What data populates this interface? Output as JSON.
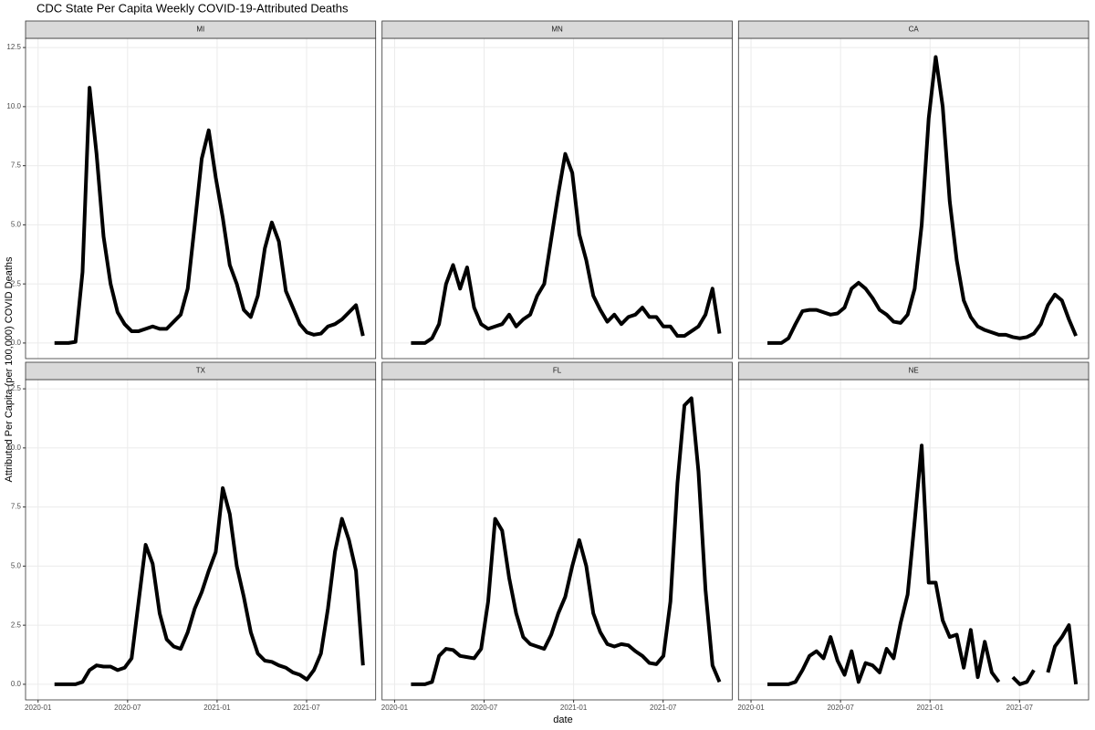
{
  "title": "CDC State Per Capita Weekly COVID-19-Attributed Deaths",
  "x_label": "date",
  "y_label": "Attributed Per Capita (per 100,000) COVID Deaths",
  "chart_data": [
    {
      "type": "line",
      "title": "MI",
      "color": "#000000",
      "grid": true,
      "y_axis_labels": true,
      "x_axis_labels": false,
      "x": [
        1.1,
        1.57,
        2.04,
        2.51,
        2.98,
        3.45,
        3.92,
        4.39,
        4.86,
        5.33,
        5.8,
        6.27,
        6.74,
        7.21,
        7.68,
        8.15,
        8.62,
        9.09,
        9.56,
        10.03,
        10.5,
        10.97,
        11.44,
        11.91,
        12.38,
        12.85,
        13.32,
        13.79,
        14.26,
        14.73,
        15.2,
        15.67,
        16.14,
        16.61,
        17.08,
        17.55,
        18.02,
        18.49,
        18.96,
        19.43,
        19.9,
        20.37,
        20.84,
        21.31,
        21.78
      ],
      "values": [
        0,
        0,
        0,
        0.05,
        3,
        10.8,
        8,
        4.5,
        2.5,
        1.3,
        0.8,
        0.5,
        0.5,
        0.6,
        0.7,
        0.6,
        0.6,
        0.9,
        1.2,
        2.3,
        5,
        7.8,
        9,
        7,
        5.3,
        3.3,
        2.5,
        1.4,
        1.1,
        2,
        4,
        5.1,
        4.3,
        2.2,
        1.5,
        0.8,
        0.45,
        0.35,
        0.4,
        0.7,
        0.8,
        1,
        1.3,
        1.6,
        0.3
      ],
      "xlim": [
        -0.84,
        22.63
      ],
      "xticks": [
        0,
        6,
        12,
        18
      ],
      "ylim": [
        -0.66,
        12.89
      ],
      "yticks": [
        {
          "value": 0,
          "label": "0.0"
        },
        2.5,
        {
          "value": 5,
          "label": "5.0"
        },
        7.5,
        {
          "value": 10,
          "label": "10.0"
        },
        12.5
      ]
    },
    {
      "type": "line",
      "title": "MN",
      "color": "#000000",
      "grid": true,
      "y_axis_labels": false,
      "x_axis_labels": false,
      "x": [
        1.1,
        1.57,
        2.04,
        2.51,
        2.98,
        3.45,
        3.92,
        4.39,
        4.86,
        5.33,
        5.8,
        6.27,
        6.74,
        7.21,
        7.68,
        8.15,
        8.62,
        9.09,
        9.56,
        10.03,
        10.5,
        10.97,
        11.44,
        11.91,
        12.38,
        12.85,
        13.32,
        13.79,
        14.26,
        14.73,
        15.2,
        15.67,
        16.14,
        16.61,
        17.08,
        17.55,
        18.02,
        18.49,
        18.96,
        19.43,
        19.9,
        20.37,
        20.84,
        21.31,
        21.78
      ],
      "values": [
        0,
        0,
        0,
        0.2,
        0.8,
        2.5,
        3.3,
        2.3,
        3.2,
        1.5,
        0.8,
        0.6,
        0.7,
        0.8,
        1.2,
        0.7,
        1,
        1.2,
        2,
        2.5,
        4.4,
        6.3,
        8,
        7.2,
        4.6,
        3.5,
        2,
        1.4,
        0.9,
        1.2,
        0.8,
        1.1,
        1.2,
        1.5,
        1.1,
        1.1,
        0.7,
        0.7,
        0.3,
        0.3,
        0.5,
        0.7,
        1.2,
        2.3,
        0.4
      ],
      "xlim": [
        -0.84,
        22.63
      ],
      "xticks": [
        0,
        6,
        12,
        18
      ],
      "ylim": [
        -0.66,
        12.89
      ],
      "yticks": [
        0,
        2.5,
        5,
        7.5,
        10,
        12.5
      ]
    },
    {
      "type": "line",
      "title": "CA",
      "color": "#000000",
      "grid": true,
      "y_axis_labels": false,
      "x_axis_labels": false,
      "x": [
        1.1,
        1.57,
        2.04,
        2.51,
        2.98,
        3.45,
        3.92,
        4.39,
        4.86,
        5.33,
        5.8,
        6.27,
        6.74,
        7.21,
        7.68,
        8.15,
        8.62,
        9.09,
        9.56,
        10.03,
        10.5,
        10.97,
        11.44,
        11.91,
        12.38,
        12.85,
        13.32,
        13.79,
        14.26,
        14.73,
        15.2,
        15.67,
        16.14,
        16.61,
        17.08,
        17.55,
        18.02,
        18.49,
        18.96,
        19.43,
        19.9,
        20.37,
        20.84,
        21.31,
        21.78
      ],
      "values": [
        0,
        0,
        0,
        0.2,
        0.8,
        1.35,
        1.4,
        1.4,
        1.3,
        1.2,
        1.25,
        1.5,
        2.3,
        2.55,
        2.3,
        1.9,
        1.4,
        1.2,
        0.9,
        0.85,
        1.2,
        2.3,
        5,
        9.5,
        12.1,
        10,
        6,
        3.5,
        1.8,
        1.1,
        0.7,
        0.55,
        0.45,
        0.35,
        0.35,
        0.25,
        0.2,
        0.25,
        0.4,
        0.8,
        1.6,
        2.05,
        1.8,
        1,
        0.3
      ],
      "xlim": [
        -0.84,
        22.63
      ],
      "xticks": [
        0,
        6,
        12,
        18
      ],
      "ylim": [
        -0.66,
        12.89
      ],
      "yticks": [
        0,
        2.5,
        5,
        7.5,
        10,
        12.5
      ]
    },
    {
      "type": "line",
      "title": "TX",
      "color": "#000000",
      "grid": true,
      "y_axis_labels": true,
      "x_axis_labels": true,
      "x": [
        1.1,
        1.57,
        2.04,
        2.51,
        2.98,
        3.45,
        3.92,
        4.39,
        4.86,
        5.33,
        5.8,
        6.27,
        6.74,
        7.21,
        7.68,
        8.15,
        8.62,
        9.09,
        9.56,
        10.03,
        10.5,
        10.97,
        11.44,
        11.91,
        12.38,
        12.85,
        13.32,
        13.79,
        14.26,
        14.73,
        15.2,
        15.67,
        16.14,
        16.61,
        17.08,
        17.55,
        18.02,
        18.49,
        18.96,
        19.43,
        19.9,
        20.37,
        20.84,
        21.31,
        21.78
      ],
      "values": [
        0,
        0,
        0,
        0,
        0.1,
        0.6,
        0.8,
        0.75,
        0.75,
        0.6,
        0.7,
        1.1,
        3.5,
        5.9,
        5.1,
        3,
        1.9,
        1.6,
        1.5,
        2.2,
        3.2,
        3.9,
        4.8,
        5.6,
        8.3,
        7.2,
        5,
        3.7,
        2.2,
        1.3,
        1,
        0.95,
        0.8,
        0.7,
        0.5,
        0.4,
        0.2,
        0.6,
        1.3,
        3.2,
        5.6,
        7,
        6.1,
        4.8,
        0.8
      ],
      "xlim": [
        -0.84,
        22.63
      ],
      "xticks": [
        {
          "value": 0,
          "label": "2020-01"
        },
        {
          "value": 6,
          "label": "2020-07"
        },
        {
          "value": 12,
          "label": "2021-01"
        },
        {
          "value": 18,
          "label": "2021-07"
        }
      ],
      "ylim": [
        -0.66,
        12.89
      ],
      "yticks": [
        {
          "value": 0,
          "label": "0.0"
        },
        2.5,
        {
          "value": 5,
          "label": "5.0"
        },
        7.5,
        {
          "value": 10,
          "label": "10.0"
        },
        12.5
      ]
    },
    {
      "type": "line",
      "title": "FL",
      "color": "#000000",
      "grid": true,
      "y_axis_labels": false,
      "x_axis_labels": true,
      "x": [
        1.1,
        1.57,
        2.04,
        2.51,
        2.98,
        3.45,
        3.92,
        4.39,
        4.86,
        5.33,
        5.8,
        6.27,
        6.74,
        7.21,
        7.68,
        8.15,
        8.62,
        9.09,
        9.56,
        10.03,
        10.5,
        10.97,
        11.44,
        11.91,
        12.38,
        12.85,
        13.32,
        13.79,
        14.26,
        14.73,
        15.2,
        15.67,
        16.14,
        16.61,
        17.08,
        17.55,
        18.02,
        18.49,
        18.96,
        19.43,
        19.9,
        20.37,
        20.84,
        21.31,
        21.78
      ],
      "values": [
        0,
        0,
        0,
        0.1,
        1.2,
        1.5,
        1.45,
        1.2,
        1.15,
        1.1,
        1.5,
        3.5,
        7,
        6.5,
        4.5,
        3,
        2,
        1.7,
        1.6,
        1.5,
        2.1,
        3,
        3.7,
        5,
        6.1,
        5,
        3,
        2.2,
        1.7,
        1.6,
        1.7,
        1.65,
        1.4,
        1.2,
        0.9,
        0.85,
        1.2,
        3.5,
        8.5,
        11.8,
        12.1,
        9,
        4,
        0.8,
        0.1
      ],
      "xlim": [
        -0.84,
        22.63
      ],
      "xticks": [
        {
          "value": 0,
          "label": "2020-01"
        },
        {
          "value": 6,
          "label": "2020-07"
        },
        {
          "value": 12,
          "label": "2021-01"
        },
        {
          "value": 18,
          "label": "2021-07"
        }
      ],
      "ylim": [
        -0.66,
        12.89
      ],
      "yticks": [
        0,
        2.5,
        5,
        7.5,
        10,
        12.5
      ]
    },
    {
      "type": "line",
      "title": "NE",
      "color": "#000000",
      "grid": true,
      "y_axis_labels": false,
      "x_axis_labels": true,
      "x": [
        1.1,
        1.57,
        2.04,
        2.51,
        2.98,
        3.45,
        3.92,
        4.39,
        4.86,
        5.33,
        5.8,
        6.27,
        6.74,
        7.21,
        7.68,
        8.15,
        8.62,
        9.09,
        9.56,
        10.03,
        10.5,
        10.97,
        11.44,
        11.91,
        12.38,
        12.85,
        13.32,
        13.79,
        14.26,
        14.73,
        15.2,
        15.67,
        16.14,
        16.61,
        17.08,
        17.55,
        18.02,
        18.49,
        18.96,
        19.43,
        19.9,
        20.37,
        20.84,
        21.31,
        21.78
      ],
      "values": [
        0,
        0,
        0,
        0,
        0.1,
        0.6,
        1.2,
        1.4,
        1.1,
        2,
        1,
        0.4,
        1.4,
        0.1,
        0.9,
        0.8,
        0.5,
        1.5,
        1.1,
        2.6,
        3.8,
        6.9,
        10.1,
        4.3,
        4.3,
        2.7,
        2,
        2.1,
        0.7,
        2.3,
        0.3,
        1.8,
        0.5,
        0.1,
        null,
        0.3,
        0,
        0.1,
        0.6,
        null,
        0.5,
        1.6,
        2,
        2.5,
        0
      ],
      "xlim": [
        -0.84,
        22.63
      ],
      "xticks": [
        {
          "value": 0,
          "label": "2020-01"
        },
        {
          "value": 6,
          "label": "2020-07"
        },
        {
          "value": 12,
          "label": "2021-01"
        },
        {
          "value": 18,
          "label": "2021-07"
        }
      ],
      "ylim": [
        -0.66,
        12.89
      ],
      "yticks": [
        0,
        2.5,
        5,
        7.5,
        10,
        12.5
      ]
    }
  ]
}
